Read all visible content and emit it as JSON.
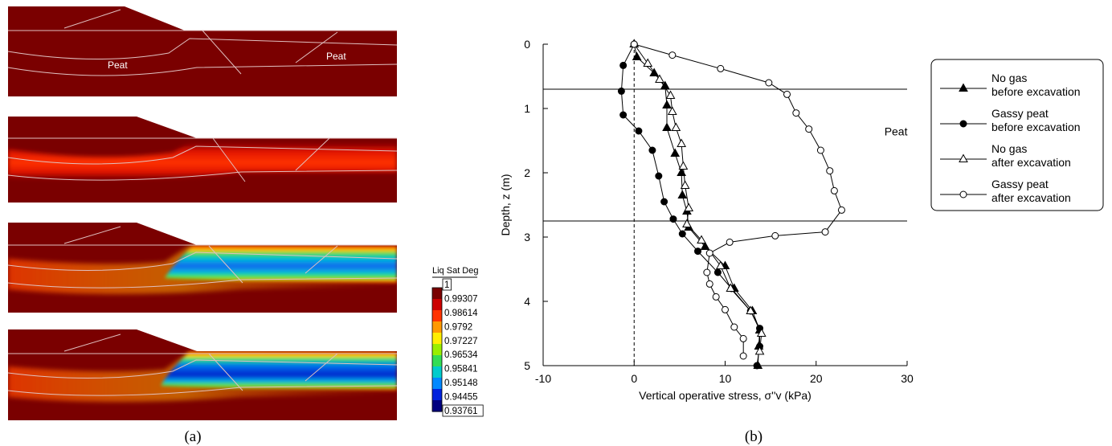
{
  "panel_labels": {
    "a": "(a)",
    "b": "(b)"
  },
  "contours": {
    "peat_labels": [
      "Peat",
      "Peat"
    ],
    "colorbar": {
      "title": "Liq Sat Deg",
      "labels": [
        "1",
        "0.99307",
        "0.98614",
        "0.9792",
        "0.97227",
        "0.96534",
        "0.95841",
        "0.95148",
        "0.94455",
        "0.93761"
      ],
      "colors": [
        "#7a0000",
        "#cc0000",
        "#ff3300",
        "#ff9900",
        "#ffee00",
        "#99ee00",
        "#33dd55",
        "#00cccc",
        "#0088ff",
        "#0022dd",
        "#000080"
      ]
    }
  },
  "chart_data": {
    "type": "scatter",
    "xlabel": "Vertical operative stress, σ''v (kPa)",
    "ylabel": "Depth, z (m)",
    "xlim": [
      -10,
      30
    ],
    "ylim": [
      5,
      0
    ],
    "y_inverted": true,
    "xticks": [
      -10,
      0,
      10,
      20,
      30
    ],
    "yticks": [
      0,
      1,
      2,
      3,
      4,
      5
    ],
    "grid": false,
    "legend_position": "right",
    "horizontal_lines": [
      0.7,
      2.75
    ],
    "vertical_reference_line": 0,
    "annotations": [
      {
        "text": "Peat",
        "x": 27.5,
        "y": 1.42
      }
    ],
    "series": [
      {
        "name": "No gas",
        "name_line2": "before excavation",
        "marker": "triangle-filled",
        "points": [
          [
            0,
            0
          ],
          [
            0.3,
            0.2
          ],
          [
            2.2,
            0.45
          ],
          [
            3.4,
            0.65
          ],
          [
            3.6,
            0.95
          ],
          [
            3.6,
            1.3
          ],
          [
            4.5,
            1.7
          ],
          [
            5.2,
            2.0
          ],
          [
            5.3,
            2.35
          ],
          [
            5.8,
            2.6
          ],
          [
            6.0,
            2.85
          ],
          [
            7.8,
            3.15
          ],
          [
            10.0,
            3.45
          ],
          [
            11.0,
            3.8
          ],
          [
            13.0,
            4.15
          ],
          [
            13.8,
            4.45
          ],
          [
            13.7,
            4.7
          ],
          [
            13.6,
            5.0
          ]
        ]
      },
      {
        "name": "Gassy peat",
        "name_line2": "before excavation",
        "marker": "circle-filled",
        "points": [
          [
            0,
            0
          ],
          [
            -1.2,
            0.33
          ],
          [
            -1.4,
            0.73
          ],
          [
            -1.2,
            1.1
          ],
          [
            0.5,
            1.35
          ],
          [
            2.0,
            1.65
          ],
          [
            2.7,
            2.05
          ],
          [
            3.3,
            2.45
          ],
          [
            4.3,
            2.72
          ],
          [
            5.3,
            2.95
          ],
          [
            7.0,
            3.22
          ],
          [
            9.2,
            3.55
          ],
          [
            10.7,
            3.8
          ],
          [
            12.8,
            4.15
          ],
          [
            13.8,
            4.42
          ],
          [
            13.8,
            4.7
          ],
          [
            13.5,
            5.0
          ]
        ]
      },
      {
        "name": "No gas",
        "name_line2": "after excavation",
        "marker": "triangle-open",
        "points": [
          [
            0,
            0
          ],
          [
            1.5,
            0.3
          ],
          [
            2.8,
            0.55
          ],
          [
            4.0,
            0.8
          ],
          [
            4.2,
            1.05
          ],
          [
            4.6,
            1.3
          ],
          [
            5.2,
            1.55
          ],
          [
            5.4,
            1.9
          ],
          [
            5.6,
            2.2
          ],
          [
            6.0,
            2.55
          ],
          [
            5.8,
            2.8
          ],
          [
            7.4,
            3.05
          ],
          [
            9.5,
            3.45
          ],
          [
            10.6,
            3.8
          ],
          [
            12.8,
            4.15
          ],
          [
            14.0,
            4.5
          ],
          [
            13.8,
            4.78
          ]
        ]
      },
      {
        "name": "Gassy peat",
        "name_line2": "after excavation",
        "marker": "circle-open",
        "points": [
          [
            0,
            0
          ],
          [
            4.2,
            0.17
          ],
          [
            9.5,
            0.38
          ],
          [
            14.8,
            0.6
          ],
          [
            16.8,
            0.78
          ],
          [
            17.8,
            1.07
          ],
          [
            19.2,
            1.32
          ],
          [
            20.5,
            1.65
          ],
          [
            21.5,
            1.97
          ],
          [
            22.0,
            2.28
          ],
          [
            22.8,
            2.58
          ],
          [
            21.0,
            2.92
          ],
          [
            15.5,
            2.98
          ],
          [
            10.5,
            3.08
          ],
          [
            8.3,
            3.25
          ],
          [
            8.0,
            3.55
          ],
          [
            8.3,
            3.73
          ],
          [
            9.0,
            3.93
          ],
          [
            10.0,
            4.13
          ],
          [
            11.0,
            4.4
          ],
          [
            12.0,
            4.58
          ],
          [
            12.0,
            4.85
          ]
        ]
      }
    ]
  }
}
